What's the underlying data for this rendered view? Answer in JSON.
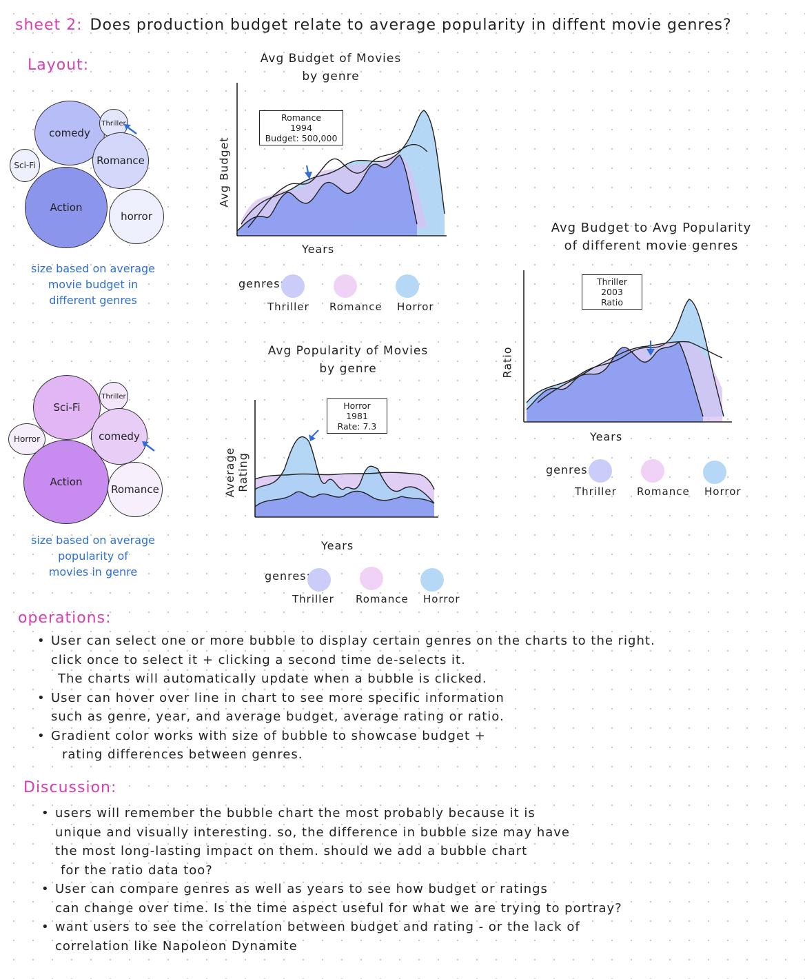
{
  "header": {
    "sheet": "sheet 2:",
    "question": "Does production budget relate to average popularity in diffent movie genres?"
  },
  "layout_label": "Layout:",
  "bubble_chart_1": {
    "bubbles": [
      {
        "label": "comedy"
      },
      {
        "label": "Thriller"
      },
      {
        "label": "Sci-Fi"
      },
      {
        "label": "Romance"
      },
      {
        "label": "Action"
      },
      {
        "label": "horror"
      }
    ],
    "note": [
      "size based on average",
      "movie budget in",
      "different genres"
    ]
  },
  "bubble_chart_2": {
    "bubbles": [
      {
        "label": "Sci-Fi"
      },
      {
        "label": "Thriller"
      },
      {
        "label": "Horror"
      },
      {
        "label": "comedy"
      },
      {
        "label": "Action"
      },
      {
        "label": "Romance"
      }
    ],
    "note": [
      "size based on average",
      "popularity of",
      "movies in genre"
    ]
  },
  "chart_data": [
    {
      "type": "area",
      "title": [
        "Avg Budget of Movies",
        "by genre"
      ],
      "xlabel": "Years",
      "ylabel": "Avg Budget",
      "legend_title": "genres:",
      "legend": [
        "Thriller",
        "Romance",
        "Horror"
      ],
      "tooltip": [
        "Romance",
        "1994",
        "Budget: 500,000"
      ]
    },
    {
      "type": "area",
      "title": [
        "Avg Popularity of Movies",
        "by genre"
      ],
      "xlabel": "Years",
      "ylabel": "Average Rating",
      "legend_title": "genres:",
      "legend": [
        "Thriller",
        "Romance",
        "Horror"
      ],
      "tooltip": [
        "Horror",
        "1981",
        "Rate: 7.3"
      ]
    },
    {
      "type": "area",
      "title": [
        "Avg Budget to Avg Popularity",
        "of different movie genres"
      ],
      "xlabel": "Years",
      "ylabel": "Ratio",
      "legend_title": "genres:",
      "legend": [
        "Thriller",
        "Romance",
        "Horror"
      ],
      "tooltip": [
        "Thriller",
        "2003",
        "Ratio"
      ]
    }
  ],
  "colors": {
    "accent_pink": "#d63fb4",
    "note_blue": "#2f6fd6",
    "thriller": "#c9cdf7",
    "romance": "#f0d2f7",
    "horror": "#b5d8f7",
    "area_blue": "#8e9ef0",
    "area_purple": "#d8c2f2",
    "area_sky": "#a7d0f4"
  },
  "operations": {
    "heading": "operations:",
    "items": [
      [
        "User can select one or more bubble to display certain genres on the charts to the right.",
        "click once to select it + clicking a second time de-selects it.",
        "The charts will automatically update when a bubble is clicked."
      ],
      [
        "User can hover over line in chart to see more specific information",
        "such as genre, year, and average budget, average rating or ratio."
      ],
      [
        "Gradient color works with size of bubble to showcase budget +",
        "rating differences between genres."
      ]
    ]
  },
  "discussion": {
    "heading": "Discussion:",
    "items": [
      [
        "users will remember the bubble chart the most probably because it is",
        "unique and visually interesting. so, the difference in bubble size may have",
        "the most long-lasting impact on them. should we add a bubble chart",
        "for the ratio data too?"
      ],
      [
        "User can compare genres as well as years to see how budget or ratings",
        "can change over time. Is the time aspect useful for what we are trying to portray?"
      ],
      [
        "want users to see the correlation between budget and rating - or the lack of",
        "correlation like Napoleon Dynamite"
      ]
    ]
  }
}
